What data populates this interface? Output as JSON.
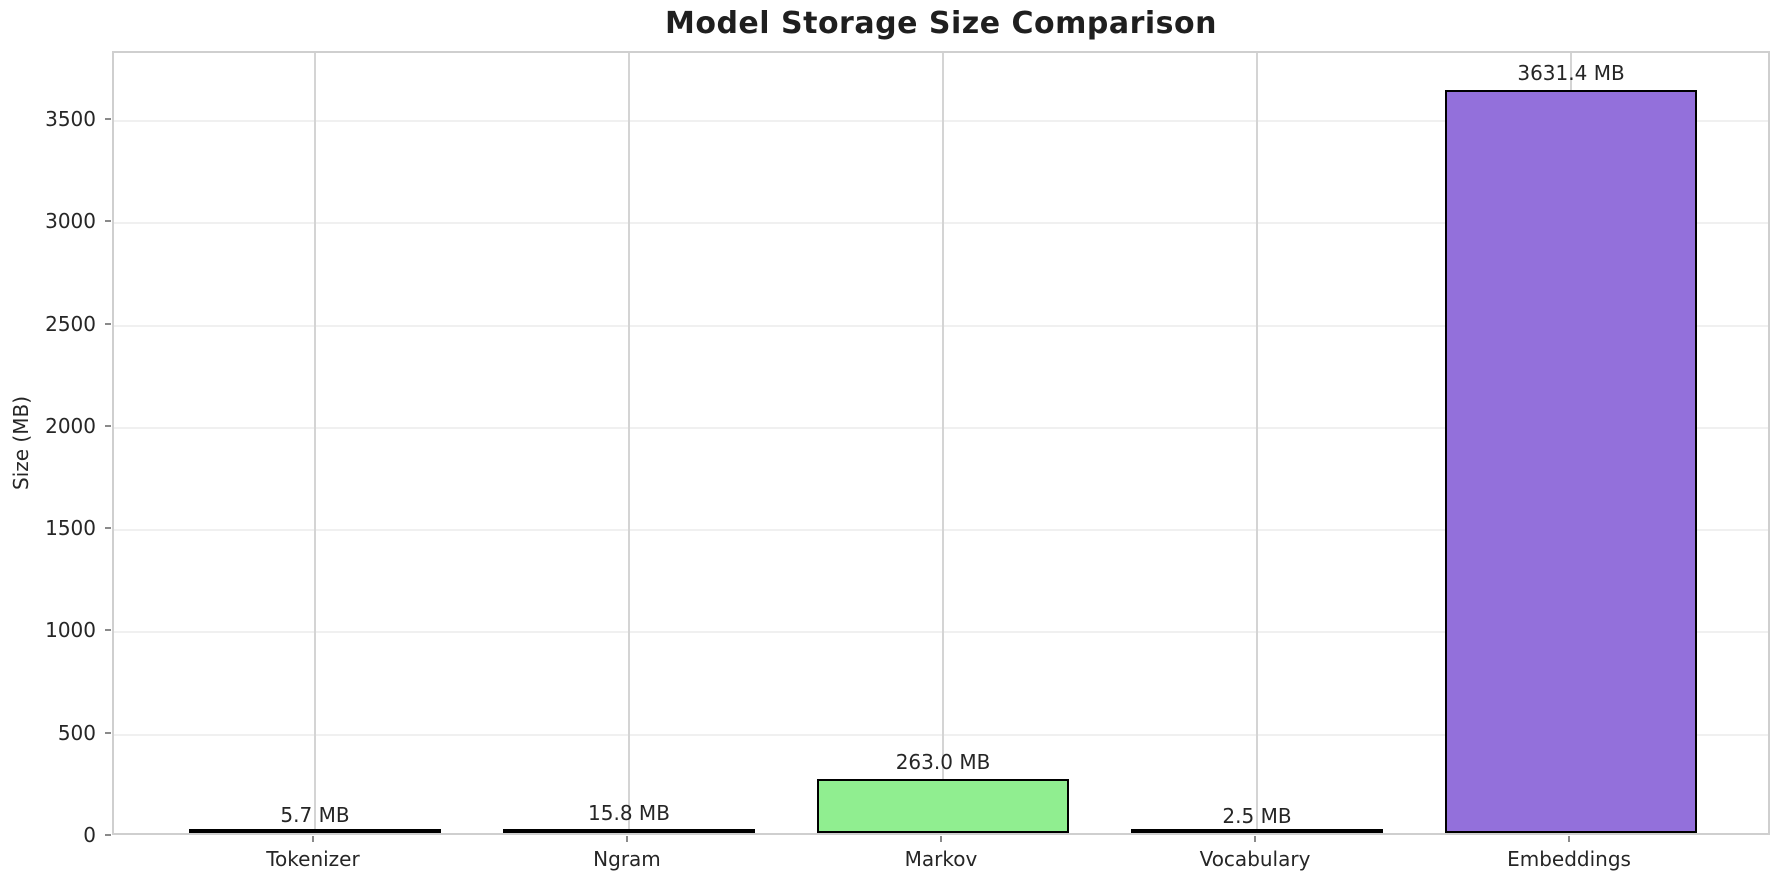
{
  "chart_data": {
    "type": "bar",
    "title": "Model Storage Size Comparison",
    "ylabel": "Size (MB)",
    "xlabel": "",
    "categories": [
      "Tokenizer",
      "Ngram",
      "Markov",
      "Vocabulary",
      "Embeddings"
    ],
    "values": [
      5.7,
      15.8,
      263.0,
      2.5,
      3631.4
    ],
    "bar_labels": [
      "5.7 MB",
      "15.8 MB",
      "263.0 MB",
      "2.5 MB",
      "3631.4 MB"
    ],
    "bar_colors": [
      "#87CEEB",
      "#F08080",
      "#90EE90",
      "#FFD700",
      "#9370DB"
    ],
    "bar_edge_color": "#000000",
    "yticks": [
      0,
      500,
      1000,
      1500,
      2000,
      2500,
      3000,
      3500
    ],
    "ylim": [
      0,
      3832
    ],
    "grid": true,
    "legend": false,
    "background_color": "#ffffff",
    "text_color": "#262626"
  }
}
